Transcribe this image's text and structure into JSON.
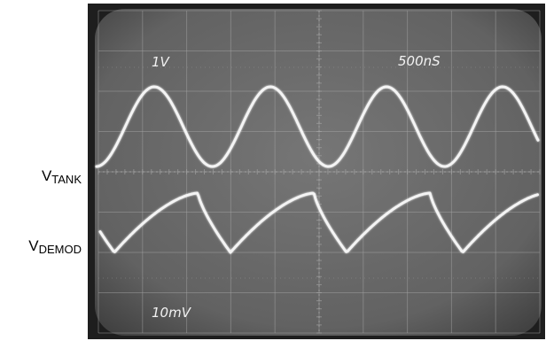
{
  "scope": {
    "volts_per_div_ch1": "1V",
    "time_per_div": "500nS",
    "volts_per_div_ch2": "10mV"
  },
  "labels": {
    "tank_main": "V",
    "tank_sub": "TANK",
    "demod_main": "V",
    "demod_sub": "DEMOD"
  },
  "colors": {
    "screen": "#6e6e6e",
    "bezel": "#1e1e1e",
    "grid": "#a8a8a8",
    "trace": "#f4f4f4"
  },
  "traces": {
    "tank": {
      "shape": "sine",
      "periods_shown": 3.3
    },
    "demod": {
      "shape": "sawtooth",
      "periods_shown": 3.3
    }
  }
}
